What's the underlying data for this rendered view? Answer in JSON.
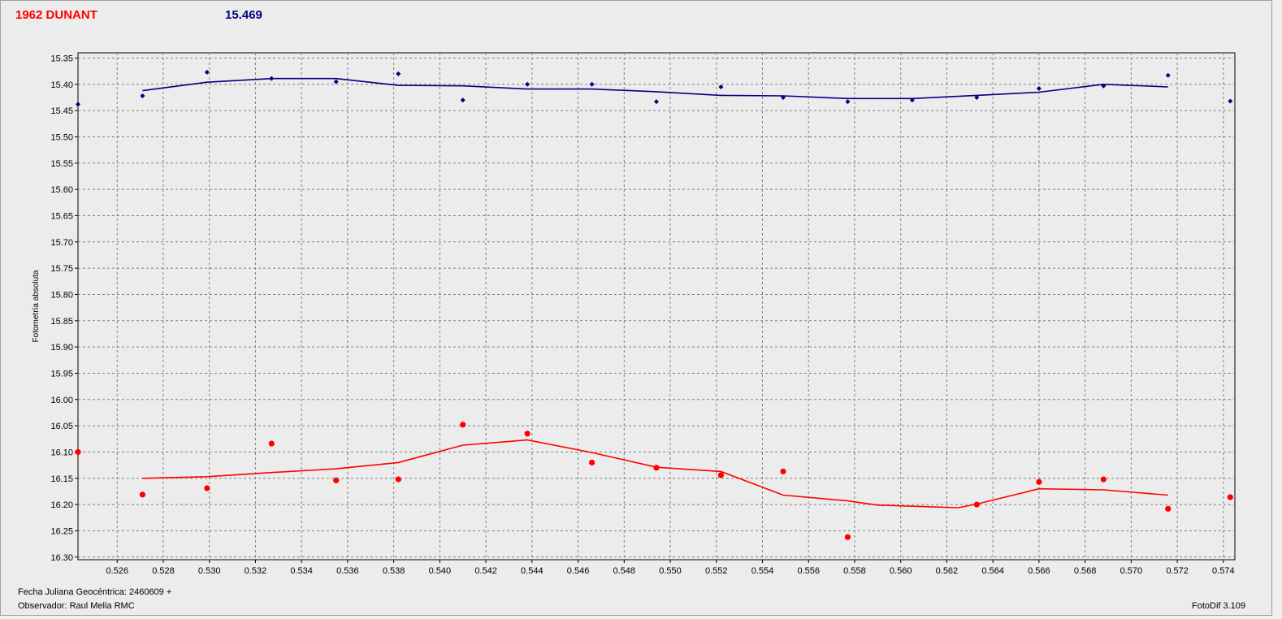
{
  "header": {
    "object_name": "1962 DUNANT",
    "object_color": "#ff0000",
    "value": "15.469",
    "value_color": "#000080"
  },
  "footer": {
    "julian_date": "Fecha Juliana Geocéntrica: 2460609 +",
    "observer": "Observador: Raul Melia RMC",
    "software": "FotoDif 3.109"
  },
  "chart_data": {
    "type": "scatter",
    "title": "",
    "xlabel": "",
    "ylabel": "Fotometría absoluta",
    "xlim": [
      0.5243,
      0.5745
    ],
    "ylim": [
      16.305,
      15.34
    ],
    "y_inverted": true,
    "grid": true,
    "x_ticks": [
      "0.526",
      "0.528",
      "0.530",
      "0.532",
      "0.534",
      "0.536",
      "0.538",
      "0.540",
      "0.542",
      "0.544",
      "0.546",
      "0.548",
      "0.550",
      "0.552",
      "0.554",
      "0.556",
      "0.558",
      "0.560",
      "0.562",
      "0.564",
      "0.566",
      "0.568",
      "0.570",
      "0.572",
      "0.574"
    ],
    "y_ticks": [
      "15.35",
      "15.40",
      "15.45",
      "15.50",
      "15.55",
      "15.60",
      "15.65",
      "15.70",
      "15.75",
      "15.80",
      "15.85",
      "15.90",
      "15.95",
      "16.00",
      "16.05",
      "16.10",
      "16.15",
      "16.20",
      "16.25",
      "16.30"
    ],
    "series": [
      {
        "color": "#000080",
        "marker": "diamond",
        "points": [
          [
            0.5243,
            15.438
          ],
          [
            0.5271,
            15.422
          ],
          [
            0.5299,
            15.377
          ],
          [
            0.5327,
            15.389
          ],
          [
            0.5355,
            15.395
          ],
          [
            0.5382,
            15.38
          ],
          [
            0.541,
            15.43
          ],
          [
            0.5438,
            15.4
          ],
          [
            0.5466,
            15.4
          ],
          [
            0.5494,
            15.433
          ],
          [
            0.5522,
            15.405
          ],
          [
            0.5549,
            15.425
          ],
          [
            0.5577,
            15.433
          ],
          [
            0.5605,
            15.43
          ],
          [
            0.5633,
            15.425
          ],
          [
            0.566,
            15.408
          ],
          [
            0.5688,
            15.403
          ],
          [
            0.5716,
            15.383
          ],
          [
            0.5743,
            15.432
          ]
        ],
        "trend": [
          [
            0.5271,
            15.412
          ],
          [
            0.5299,
            15.396
          ],
          [
            0.5327,
            15.389
          ],
          [
            0.5355,
            15.389
          ],
          [
            0.5382,
            15.402
          ],
          [
            0.541,
            15.403
          ],
          [
            0.5438,
            15.409
          ],
          [
            0.5466,
            15.409
          ],
          [
            0.5494,
            15.414
          ],
          [
            0.5522,
            15.421
          ],
          [
            0.5549,
            15.422
          ],
          [
            0.5577,
            15.427
          ],
          [
            0.5605,
            15.427
          ],
          [
            0.5633,
            15.421
          ],
          [
            0.566,
            15.415
          ],
          [
            0.5688,
            15.4
          ],
          [
            0.5716,
            15.405
          ]
        ]
      },
      {
        "color": "#ff0000",
        "marker": "circle",
        "points": [
          [
            0.5243,
            16.1
          ],
          [
            0.5271,
            16.181
          ],
          [
            0.5299,
            16.169
          ],
          [
            0.5327,
            16.084
          ],
          [
            0.5355,
            16.154
          ],
          [
            0.5382,
            16.152
          ],
          [
            0.541,
            16.048
          ],
          [
            0.5438,
            16.065
          ],
          [
            0.5466,
            16.12
          ],
          [
            0.5494,
            16.13
          ],
          [
            0.5522,
            16.144
          ],
          [
            0.5549,
            16.137
          ],
          [
            0.5577,
            16.262
          ],
          [
            0.5633,
            16.2
          ],
          [
            0.566,
            16.157
          ],
          [
            0.5688,
            16.152
          ],
          [
            0.5716,
            16.208
          ],
          [
            0.5743,
            16.186
          ]
        ],
        "trend": [
          [
            0.5271,
            16.15
          ],
          [
            0.5299,
            16.147
          ],
          [
            0.5327,
            16.139
          ],
          [
            0.5355,
            16.132
          ],
          [
            0.5382,
            16.12
          ],
          [
            0.541,
            16.087
          ],
          [
            0.5438,
            16.077
          ],
          [
            0.5466,
            16.101
          ],
          [
            0.5494,
            16.129
          ],
          [
            0.5522,
            16.137
          ],
          [
            0.5549,
            16.182
          ],
          [
            0.5577,
            16.193
          ],
          [
            0.559,
            16.201
          ],
          [
            0.5625,
            16.206
          ],
          [
            0.5633,
            16.199
          ],
          [
            0.566,
            16.17
          ],
          [
            0.5688,
            16.172
          ],
          [
            0.5716,
            16.182
          ]
        ]
      }
    ]
  }
}
